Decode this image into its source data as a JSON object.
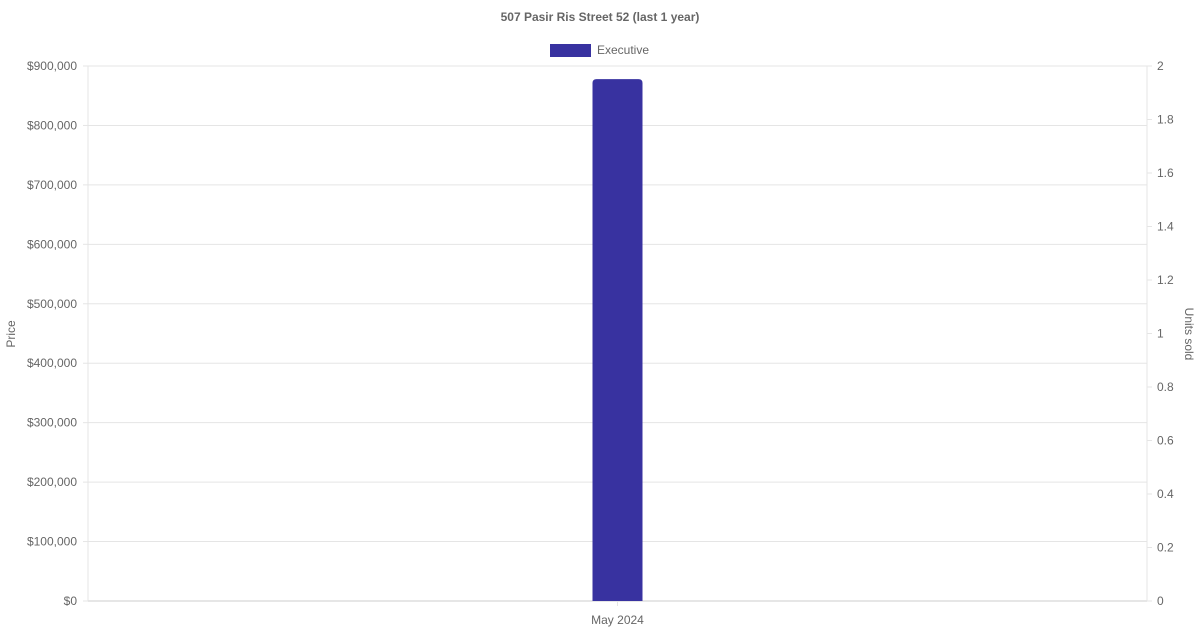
{
  "chart_data": {
    "type": "bar",
    "title": "507 Pasir Ris Street 52 (last 1 year)",
    "categories": [
      "May 2024"
    ],
    "series": [
      {
        "name": "Executive",
        "values": [
          878000
        ],
        "color": "#3832a0"
      }
    ],
    "ylabel": "Price",
    "y2label": "Units sold",
    "ylim": [
      0,
      900000
    ],
    "y2lim": [
      0,
      2
    ],
    "yticks": [
      "$0",
      "$100,000",
      "$200,000",
      "$300,000",
      "$400,000",
      "$500,000",
      "$600,000",
      "$700,000",
      "$800,000",
      "$900,000"
    ],
    "y2ticks": [
      "0",
      "0.2",
      "0.4",
      "0.6",
      "0.8",
      "1",
      "1.2",
      "1.4",
      "1.6",
      "1.8",
      "2"
    ],
    "grid": true,
    "legend": "top"
  }
}
